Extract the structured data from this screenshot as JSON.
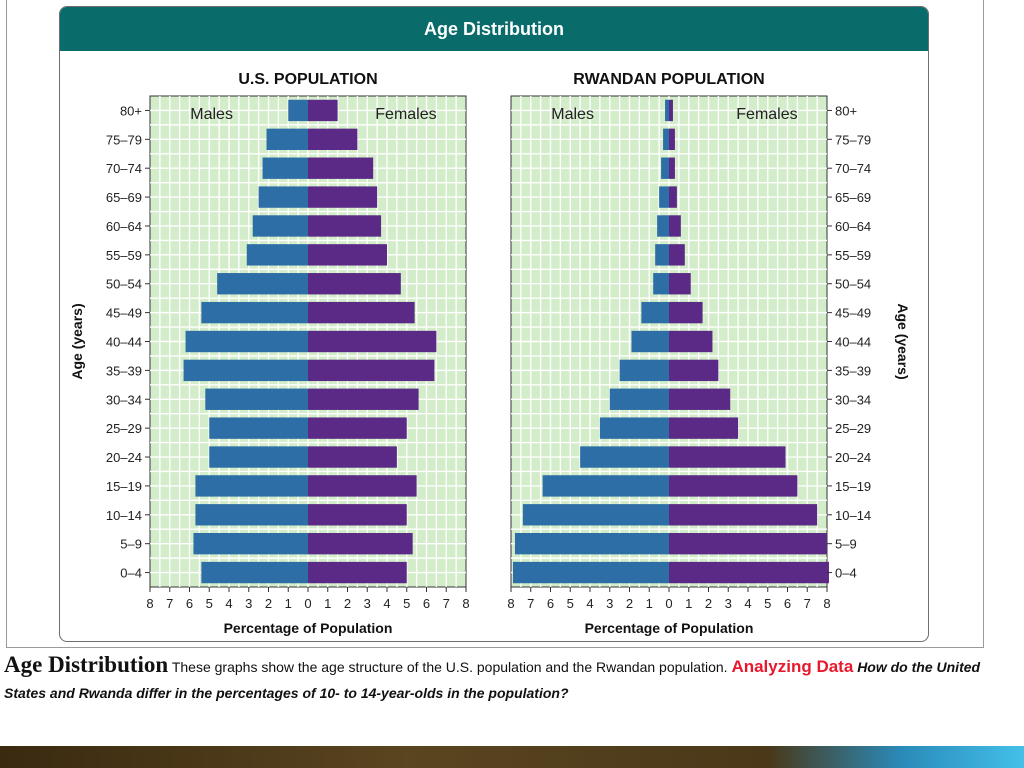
{
  "figure": {
    "header": "Age Distribution"
  },
  "caption": {
    "title": "Age Distribution",
    "body": "These graphs show the age structure of the U.S. population and the Rwandan population.",
    "label": "Analyzing Data",
    "question": "How do the United States and Rwanda differ in the percentages of 10- to 14-year-olds in the population?"
  },
  "colors": {
    "males": "#2e6ea6",
    "females": "#5b2a86",
    "plot_bg": "#d3ecc9",
    "grid": "#ffffff",
    "header": "#0a6b6b"
  },
  "chart_data": [
    {
      "type": "bar",
      "orientation": "population-pyramid",
      "title": "U.S. POPULATION",
      "xlabel": "Percentage of Population",
      "ylabel": "Age (years)",
      "xlim": [
        -8,
        8
      ],
      "x_ticks": [
        "8",
        "7",
        "6",
        "5",
        "4",
        "3",
        "2",
        "1",
        "0",
        "1",
        "2",
        "3",
        "4",
        "5",
        "6",
        "7",
        "8"
      ],
      "legend": {
        "left": "Males",
        "right": "Females"
      },
      "categories": [
        "80+",
        "75–79",
        "70–74",
        "65–69",
        "60–64",
        "55–59",
        "50–54",
        "45–49",
        "40–44",
        "35–39",
        "30–34",
        "25–29",
        "20–24",
        "15–19",
        "10–14",
        "5–9",
        "0–4"
      ],
      "series": [
        {
          "name": "Males",
          "values": [
            1.0,
            2.1,
            2.3,
            2.5,
            2.8,
            3.1,
            4.6,
            5.4,
            6.2,
            6.3,
            5.2,
            5.0,
            5.0,
            5.7,
            5.7,
            5.8,
            5.4
          ]
        },
        {
          "name": "Females",
          "values": [
            1.5,
            2.5,
            3.3,
            3.5,
            3.7,
            4.0,
            4.7,
            5.4,
            6.5,
            6.4,
            5.6,
            5.0,
            4.5,
            5.5,
            5.0,
            5.3,
            5.0
          ]
        }
      ]
    },
    {
      "type": "bar",
      "orientation": "population-pyramid",
      "title": "RWANDAN POPULATION",
      "xlabel": "Percentage of Population",
      "ylabel": "Age (years)",
      "xlim": [
        -8,
        8
      ],
      "x_ticks": [
        "8",
        "7",
        "6",
        "5",
        "4",
        "3",
        "2",
        "1",
        "0",
        "1",
        "2",
        "3",
        "4",
        "5",
        "6",
        "7",
        "8"
      ],
      "legend": {
        "left": "Males",
        "right": "Females"
      },
      "categories": [
        "80+",
        "75–79",
        "70–74",
        "65–69",
        "60–64",
        "55–59",
        "50–54",
        "45–49",
        "40–44",
        "35–39",
        "30–34",
        "25–29",
        "20–24",
        "15–19",
        "10–14",
        "5–9",
        "0–4"
      ],
      "series": [
        {
          "name": "Males",
          "values": [
            0.2,
            0.3,
            0.4,
            0.5,
            0.6,
            0.7,
            0.8,
            1.4,
            1.9,
            2.5,
            3.0,
            3.5,
            4.5,
            6.4,
            7.4,
            7.8,
            7.9
          ]
        },
        {
          "name": "Females",
          "values": [
            0.2,
            0.3,
            0.3,
            0.4,
            0.6,
            0.8,
            1.1,
            1.7,
            2.2,
            2.5,
            3.1,
            3.5,
            5.9,
            6.5,
            7.5,
            8.0,
            8.1
          ]
        }
      ]
    }
  ]
}
